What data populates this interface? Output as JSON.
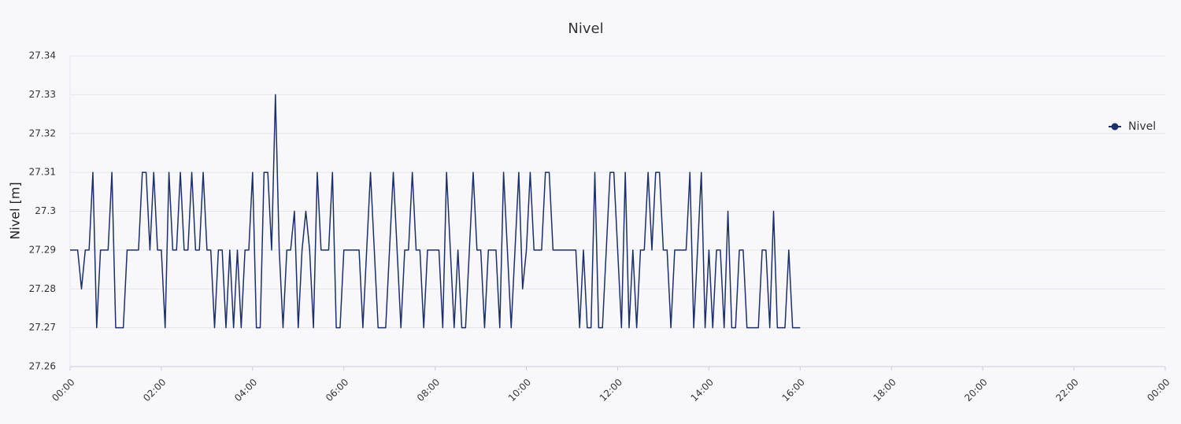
{
  "chart_data": {
    "type": "line",
    "title": "Nivel",
    "y_label": "Nivel [m]",
    "xlim": [
      0,
      1440
    ],
    "xticks": [
      {
        "value": 0,
        "label": "00:00"
      },
      {
        "value": 120,
        "label": "02:00"
      },
      {
        "value": 240,
        "label": "04:00"
      },
      {
        "value": 360,
        "label": "06:00"
      },
      {
        "value": 480,
        "label": "08:00"
      },
      {
        "value": 600,
        "label": "10:00"
      },
      {
        "value": 720,
        "label": "12:00"
      },
      {
        "value": 840,
        "label": "14:00"
      },
      {
        "value": 960,
        "label": "16:00"
      },
      {
        "value": 1080,
        "label": "18:00"
      },
      {
        "value": 1200,
        "label": "20:00"
      },
      {
        "value": 1320,
        "label": "22:00"
      },
      {
        "value": 1440,
        "label": "00:00"
      }
    ],
    "ylim": [
      27.26,
      27.34
    ],
    "yticks": [
      27.26,
      27.27,
      27.28,
      27.29,
      27.3,
      27.31,
      27.32,
      27.33,
      27.34
    ],
    "grid": true,
    "legend": "right",
    "x": [
      0,
      5,
      10,
      15,
      20,
      25,
      30,
      35,
      40,
      45,
      50,
      55,
      60,
      65,
      70,
      75,
      80,
      85,
      90,
      95,
      100,
      105,
      110,
      115,
      120,
      125,
      130,
      135,
      140,
      145,
      150,
      155,
      160,
      165,
      170,
      175,
      180,
      185,
      190,
      195,
      200,
      205,
      210,
      215,
      220,
      225,
      230,
      235,
      240,
      245,
      250,
      255,
      260,
      265,
      270,
      275,
      280,
      285,
      290,
      295,
      300,
      305,
      310,
      315,
      320,
      325,
      330,
      335,
      340,
      345,
      350,
      355,
      360,
      365,
      370,
      375,
      380,
      385,
      390,
      395,
      400,
      405,
      410,
      415,
      420,
      425,
      430,
      435,
      440,
      445,
      450,
      455,
      460,
      465,
      470,
      475,
      480,
      485,
      490,
      495,
      500,
      505,
      510,
      515,
      520,
      525,
      530,
      535,
      540,
      545,
      550,
      555,
      560,
      565,
      570,
      575,
      580,
      585,
      590,
      595,
      600,
      605,
      610,
      615,
      620,
      625,
      630,
      635,
      640,
      645,
      650,
      655,
      660,
      665,
      670,
      675,
      680,
      685,
      690,
      695,
      700,
      705,
      710,
      715,
      720,
      725,
      730,
      735,
      740,
      745,
      750,
      755,
      760,
      765,
      770,
      775,
      780,
      785,
      790,
      795,
      800,
      805,
      810,
      815,
      820,
      825,
      830,
      835,
      840,
      845,
      850,
      855,
      860,
      865,
      870,
      875,
      880,
      885,
      890,
      895,
      900,
      905,
      910,
      915,
      920,
      925,
      930,
      935,
      940,
      945,
      950,
      955,
      960
    ],
    "series": [
      {
        "name": "Nivel",
        "color": "#1c2f6b",
        "values": [
          27.29,
          27.29,
          27.29,
          27.28,
          27.29,
          27.29,
          27.31,
          27.27,
          27.29,
          27.29,
          27.29,
          27.31,
          27.27,
          27.27,
          27.27,
          27.29,
          27.29,
          27.29,
          27.29,
          27.31,
          27.31,
          27.29,
          27.31,
          27.29,
          27.29,
          27.27,
          27.31,
          27.29,
          27.29,
          27.31,
          27.29,
          27.29,
          27.31,
          27.29,
          27.29,
          27.31,
          27.29,
          27.29,
          27.27,
          27.29,
          27.29,
          27.27,
          27.29,
          27.27,
          27.29,
          27.27,
          27.29,
          27.29,
          27.31,
          27.27,
          27.27,
          27.31,
          27.31,
          27.29,
          27.33,
          27.29,
          27.27,
          27.29,
          27.29,
          27.3,
          27.27,
          27.29,
          27.3,
          27.29,
          27.27,
          27.31,
          27.29,
          27.29,
          27.29,
          27.31,
          27.27,
          27.27,
          27.29,
          27.29,
          27.29,
          27.29,
          27.29,
          27.27,
          27.29,
          27.31,
          27.29,
          27.27,
          27.27,
          27.27,
          27.29,
          27.31,
          27.29,
          27.27,
          27.29,
          27.29,
          27.31,
          27.29,
          27.29,
          27.27,
          27.29,
          27.29,
          27.29,
          27.29,
          27.27,
          27.31,
          27.29,
          27.27,
          27.29,
          27.27,
          27.27,
          27.29,
          27.31,
          27.29,
          27.29,
          27.27,
          27.29,
          27.29,
          27.29,
          27.27,
          27.31,
          27.29,
          27.27,
          27.29,
          27.31,
          27.28,
          27.29,
          27.31,
          27.29,
          27.29,
          27.29,
          27.31,
          27.31,
          27.29,
          27.29,
          27.29,
          27.29,
          27.29,
          27.29,
          27.29,
          27.27,
          27.29,
          27.27,
          27.27,
          27.31,
          27.27,
          27.27,
          27.29,
          27.31,
          27.31,
          27.29,
          27.27,
          27.31,
          27.27,
          27.29,
          27.27,
          27.29,
          27.29,
          27.31,
          27.29,
          27.31,
          27.31,
          27.29,
          27.29,
          27.27,
          27.29,
          27.29,
          27.29,
          27.29,
          27.31,
          27.27,
          27.29,
          27.31,
          27.27,
          27.29,
          27.27,
          27.29,
          27.29,
          27.27,
          27.3,
          27.27,
          27.27,
          27.29,
          27.29,
          27.27,
          27.27,
          27.27,
          27.27,
          27.29,
          27.29,
          27.27,
          27.3,
          27.27,
          27.27,
          27.27,
          27.29,
          27.27,
          27.27,
          27.27
        ]
      }
    ]
  }
}
